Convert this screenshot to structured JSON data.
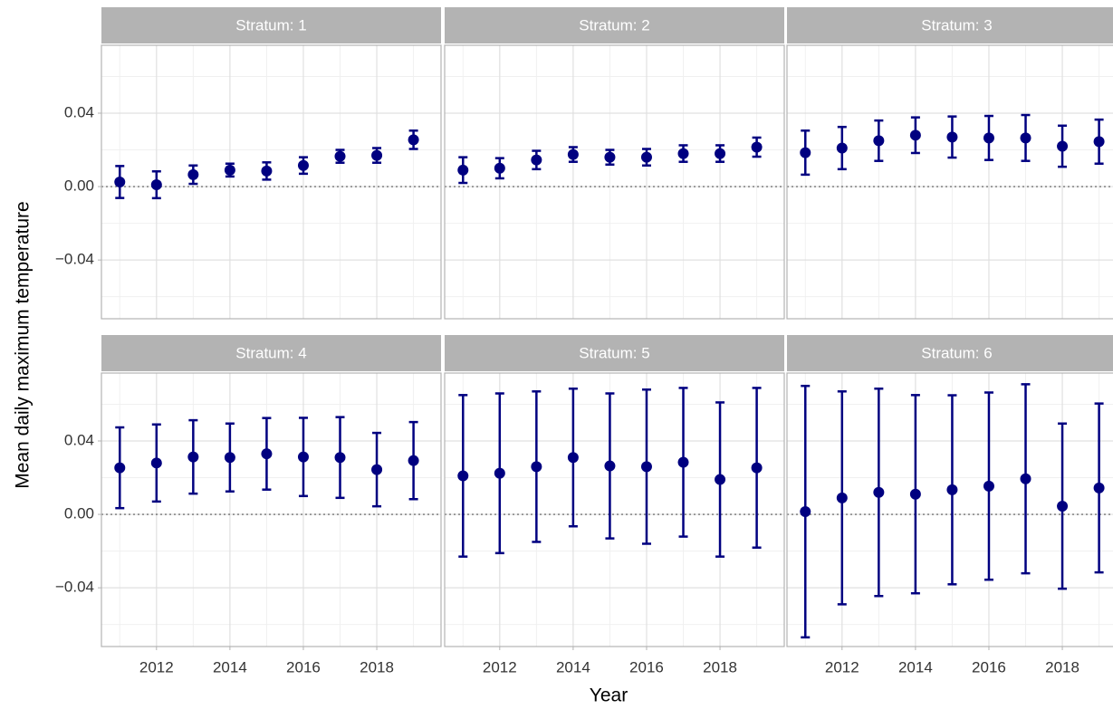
{
  "chart_data": {
    "type": "errorbar",
    "xlabel": "Year",
    "ylabel": "Mean daily maximum temperature",
    "color": "#000080",
    "grid": true,
    "reference_line": 0,
    "xlim": [
      2010.5,
      2019.75
    ],
    "ylim": [
      -0.072,
      0.077
    ],
    "xticks": [
      2012,
      2014,
      2016,
      2018
    ],
    "minor_xticks": [
      2011,
      2013,
      2015,
      2017,
      2019
    ],
    "yticks": [
      {
        "value": -0.04,
        "label": "−0.04"
      },
      {
        "value": 0,
        "label": "0.00"
      },
      {
        "value": 0.04,
        "label": "0.04"
      }
    ],
    "minor_yticks": [
      -0.06,
      -0.02,
      0.02,
      0.06
    ],
    "x": [
      2011,
      2012,
      2013,
      2014,
      2015,
      2016,
      2017,
      2018,
      2019
    ],
    "facets": [
      {
        "title": "Stratum: 1",
        "values": [
          0.0025,
          0.001,
          0.0065,
          0.009,
          0.0085,
          0.0115,
          0.0165,
          0.017,
          0.0255
        ],
        "errors": [
          0.0087,
          0.0073,
          0.005,
          0.0035,
          0.0047,
          0.0045,
          0.0035,
          0.004,
          0.005
        ]
      },
      {
        "title": "Stratum: 2",
        "values": [
          0.009,
          0.01,
          0.0145,
          0.0175,
          0.016,
          0.016,
          0.018,
          0.018,
          0.0215
        ],
        "errors": [
          0.007,
          0.0055,
          0.005,
          0.004,
          0.004,
          0.0045,
          0.0045,
          0.0045,
          0.0052
        ]
      },
      {
        "title": "Stratum: 3",
        "values": [
          0.0185,
          0.021,
          0.025,
          0.028,
          0.027,
          0.0265,
          0.0265,
          0.022,
          0.0245
        ],
        "errors": [
          0.012,
          0.0115,
          0.011,
          0.0097,
          0.0112,
          0.012,
          0.0125,
          0.0112,
          0.012
        ]
      },
      {
        "title": "Stratum: 4",
        "values": [
          0.0254,
          0.028,
          0.0313,
          0.031,
          0.033,
          0.0313,
          0.031,
          0.0244,
          0.0293
        ],
        "errors": [
          0.022,
          0.021,
          0.02,
          0.0185,
          0.0195,
          0.0213,
          0.022,
          0.02,
          0.021
        ]
      },
      {
        "title": "Stratum: 5",
        "values": [
          0.021,
          0.0224,
          0.026,
          0.031,
          0.0264,
          0.026,
          0.0284,
          0.019,
          0.0254
        ],
        "errors": [
          0.044,
          0.0435,
          0.041,
          0.0375,
          0.0395,
          0.042,
          0.0405,
          0.042,
          0.0435
        ]
      },
      {
        "title": "Stratum: 6",
        "values": [
          0.0015,
          0.009,
          0.012,
          0.011,
          0.0134,
          0.0154,
          0.0194,
          0.0045,
          0.0144
        ],
        "errors": [
          0.0685,
          0.058,
          0.0565,
          0.054,
          0.0515,
          0.051,
          0.0515,
          0.045,
          0.046
        ]
      }
    ]
  }
}
